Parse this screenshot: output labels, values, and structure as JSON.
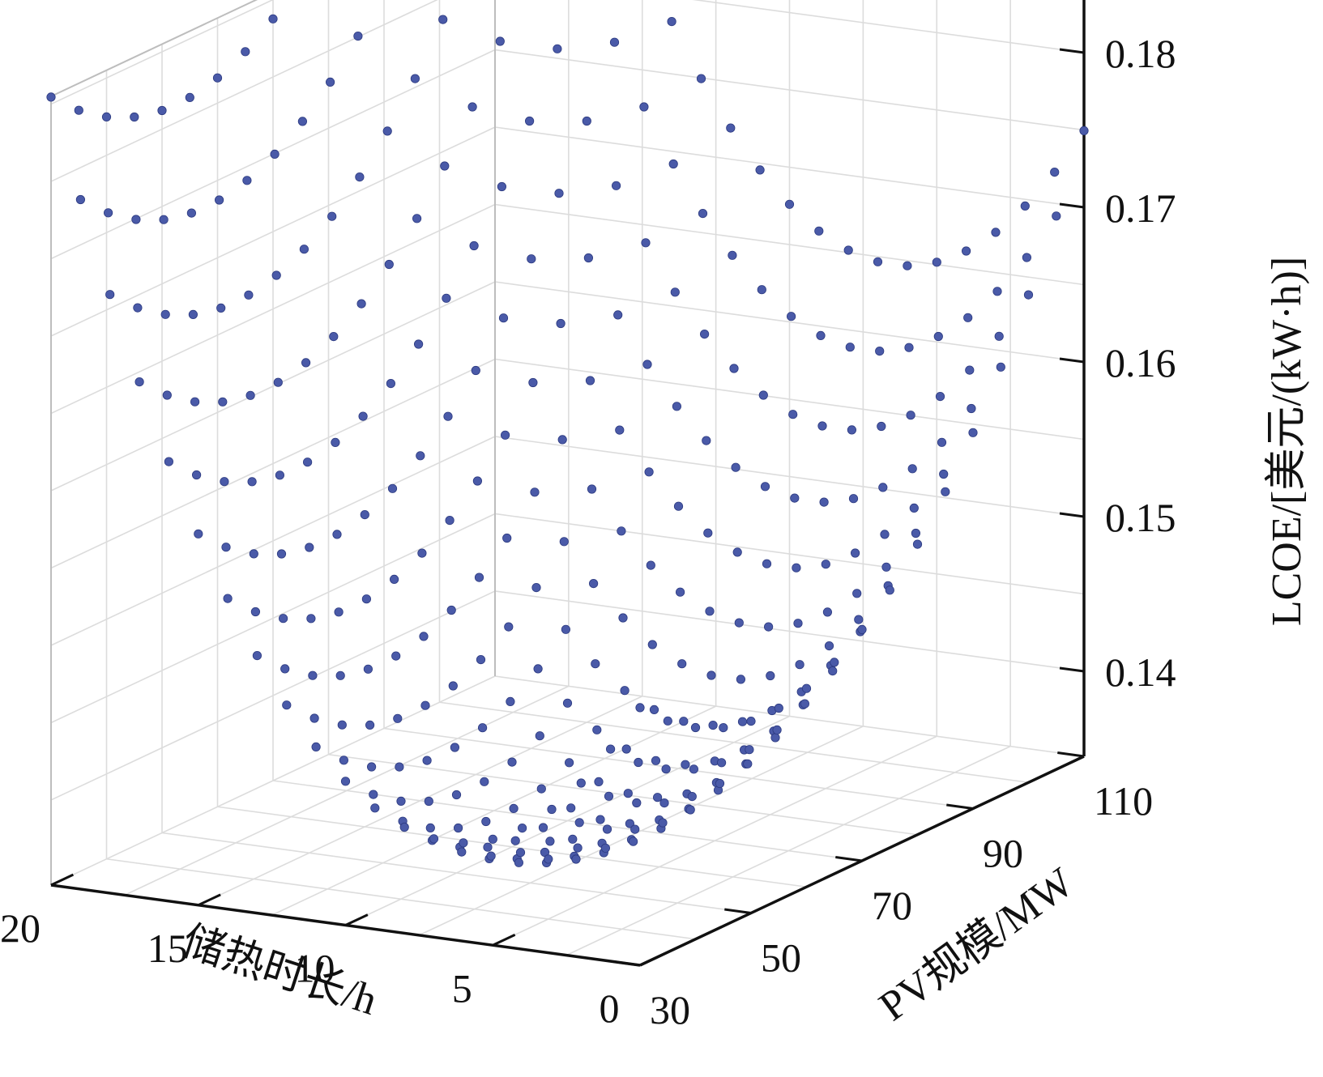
{
  "chart_data": {
    "type": "scatter",
    "projection": "3d",
    "title": "",
    "xlabel": "储热时长/h",
    "ylabel": "PV规模/MW",
    "zlabel": "LCOE/[美元/(kW·h)]",
    "x_ticks": [
      0,
      5,
      10,
      15,
      20
    ],
    "x_range": [
      0,
      20
    ],
    "y_ticks": [
      30,
      50,
      70,
      90,
      110
    ],
    "y_range": [
      30,
      110
    ],
    "z_ticks": [
      0.14,
      0.15,
      0.16,
      0.17,
      0.18
    ],
    "z_range": [
      0.1345,
      0.1855
    ],
    "grid": true,
    "legend": "none",
    "marker_color": "#4a5aa8",
    "surface_model": {
      "z_min": 0.1365,
      "x_opt": 6.5,
      "y_opt": 52.5,
      "x_coef": 0.000245,
      "y_coef": 8.5e-06,
      "x_step": 1,
      "y_step": 5
    }
  }
}
